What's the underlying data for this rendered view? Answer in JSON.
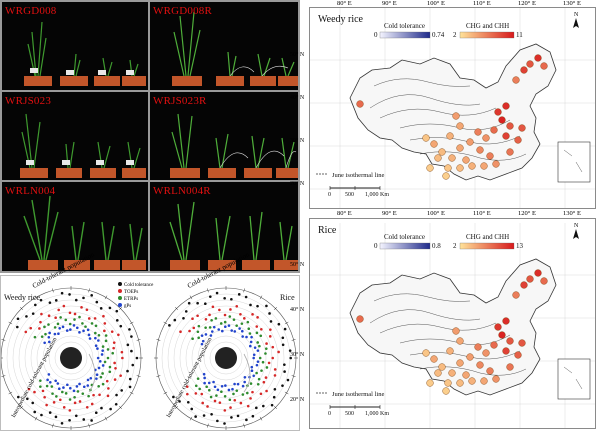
{
  "photos": [
    {
      "label": "WRGD008"
    },
    {
      "label": "WRGD008R"
    },
    {
      "label": "WRJS023"
    },
    {
      "label": "WRJS023R"
    },
    {
      "label": "WRLN004"
    },
    {
      "label": "WRLN004R"
    }
  ],
  "radial": {
    "left_title": "Weedy rice",
    "right_title": "Rice",
    "cold_tolerant": "Cold-tolerant population",
    "intermediate": "Intermediate cold-tolerant population",
    "legend": [
      {
        "name": "Cold tolerance",
        "color": "#111111"
      },
      {
        "name": "TOEPs",
        "color": "#d62828"
      },
      {
        "name": "ETRPs",
        "color": "#2e8b2e"
      },
      {
        "name": "gPs",
        "color": "#2244cc"
      }
    ]
  },
  "maps": [
    {
      "title": "Weedy rice",
      "cold_label": "Cold tolerance",
      "cold_min": "0",
      "cold_max": "0.74",
      "chg_label": "CHG and CHH",
      "chg_min": "2",
      "chg_max": "11",
      "iso_label": "June isothermal line",
      "scale_labels": [
        "0",
        "500",
        "1,000 Km"
      ]
    },
    {
      "title": "Rice",
      "cold_label": "Cold tolerance",
      "cold_min": "0",
      "cold_max": "0.8",
      "chg_label": "CHG and CHH",
      "chg_min": "2",
      "chg_max": "13",
      "iso_label": "June isothermal line",
      "scale_labels": [
        "0",
        "500",
        "1,000 Km"
      ]
    }
  ],
  "lon_ticks": [
    "80° E",
    "90° E",
    "100° E",
    "110° E",
    "120° E",
    "130° E"
  ],
  "lat_ticks": [
    "50° N",
    "40° N",
    "30° N",
    "20° N"
  ],
  "compass": "N",
  "colors": {
    "cold_low": "#f4f4ff",
    "cold_high": "#1f2a8a",
    "chg_low": "#ffe39a",
    "chg_high": "#d7191c"
  }
}
